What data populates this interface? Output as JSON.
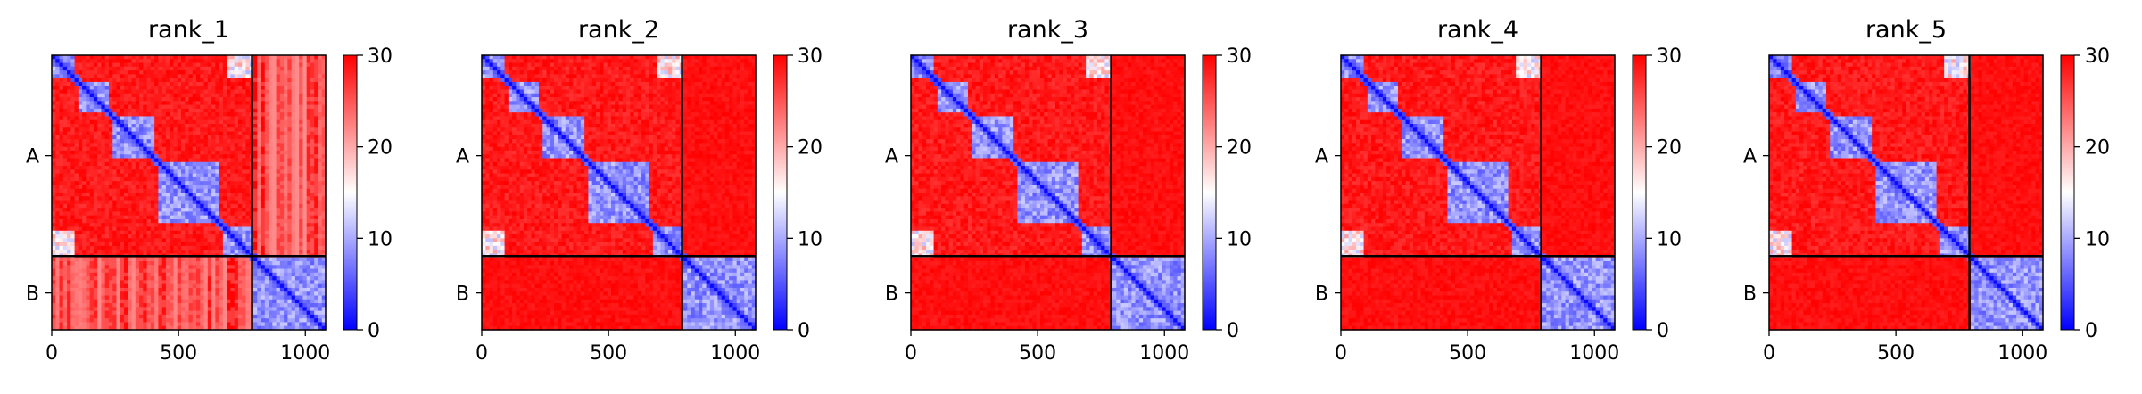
{
  "figure": {
    "colors": {
      "low": "#0000ff",
      "mid": "#ffffff",
      "high": "#ff0000",
      "frame": "#000000"
    }
  },
  "chart_data": [
    {
      "type": "heatmap",
      "title": "rank_1",
      "xlabel": "",
      "ylabel": "",
      "x_ticks": [
        0,
        500,
        1000
      ],
      "xlim": [
        0,
        1080
      ],
      "chain_labels": [
        "A",
        "B"
      ],
      "chain_boundary": 790,
      "colorbar": {
        "min": 0,
        "max": 30,
        "ticks": [
          0,
          10,
          20,
          30
        ],
        "cmap": "bwr"
      },
      "inter_chain_contact": "partial"
    },
    {
      "type": "heatmap",
      "title": "rank_2",
      "xlabel": "",
      "ylabel": "",
      "x_ticks": [
        0,
        500,
        1000
      ],
      "xlim": [
        0,
        1080
      ],
      "chain_labels": [
        "A",
        "B"
      ],
      "chain_boundary": 790,
      "colorbar": {
        "min": 0,
        "max": 30,
        "ticks": [
          0,
          10,
          20,
          30
        ],
        "cmap": "bwr"
      },
      "inter_chain_contact": "none"
    },
    {
      "type": "heatmap",
      "title": "rank_3",
      "xlabel": "",
      "ylabel": "",
      "x_ticks": [
        0,
        500,
        1000
      ],
      "xlim": [
        0,
        1080
      ],
      "chain_labels": [
        "A",
        "B"
      ],
      "chain_boundary": 790,
      "colorbar": {
        "min": 0,
        "max": 30,
        "ticks": [
          0,
          10,
          20,
          30
        ],
        "cmap": "bwr"
      },
      "inter_chain_contact": "none"
    },
    {
      "type": "heatmap",
      "title": "rank_4",
      "xlabel": "",
      "ylabel": "",
      "x_ticks": [
        0,
        500,
        1000
      ],
      "xlim": [
        0,
        1080
      ],
      "chain_labels": [
        "A",
        "B"
      ],
      "chain_boundary": 790,
      "colorbar": {
        "min": 0,
        "max": 30,
        "ticks": [
          0,
          10,
          20,
          30
        ],
        "cmap": "bwr"
      },
      "inter_chain_contact": "none"
    },
    {
      "type": "heatmap",
      "title": "rank_5",
      "xlabel": "",
      "ylabel": "",
      "x_ticks": [
        0,
        500,
        1000
      ],
      "xlim": [
        0,
        1080
      ],
      "chain_labels": [
        "A",
        "B"
      ],
      "chain_boundary": 790,
      "colorbar": {
        "min": 0,
        "max": 30,
        "ticks": [
          0,
          10,
          20,
          30
        ],
        "cmap": "bwr"
      },
      "inter_chain_contact": "none"
    }
  ]
}
